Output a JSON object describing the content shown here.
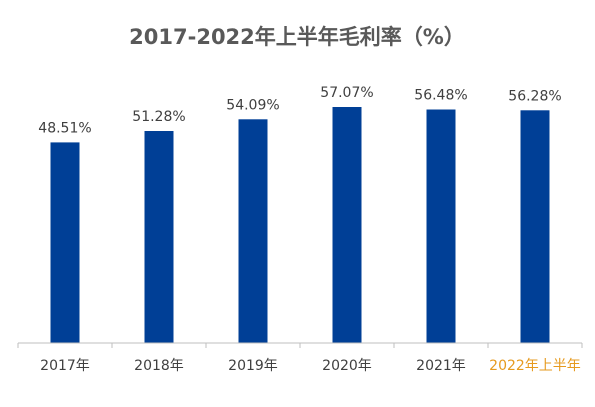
{
  "chart_data": {
    "type": "bar",
    "title": "2017-2022年上半年毛利率（%）",
    "categories": [
      "2017年",
      "2018年",
      "2019年",
      "2020年",
      "2021年",
      "2022年上半年"
    ],
    "values": [
      48.51,
      51.28,
      54.09,
      57.07,
      56.48,
      56.28
    ],
    "data_labels": [
      "48.51%",
      "51.28%",
      "54.09%",
      "57.07%",
      "56.48%",
      "56.28%"
    ],
    "xlabel": "",
    "ylabel": "",
    "grid": false,
    "colors": {
      "bar": "#003f96",
      "title": "#595959",
      "label": "#404040",
      "tick": "#404040",
      "highlight_tick": "#e69a1e",
      "axis": "#bfbfbf"
    },
    "highlight_category_index": 5
  }
}
